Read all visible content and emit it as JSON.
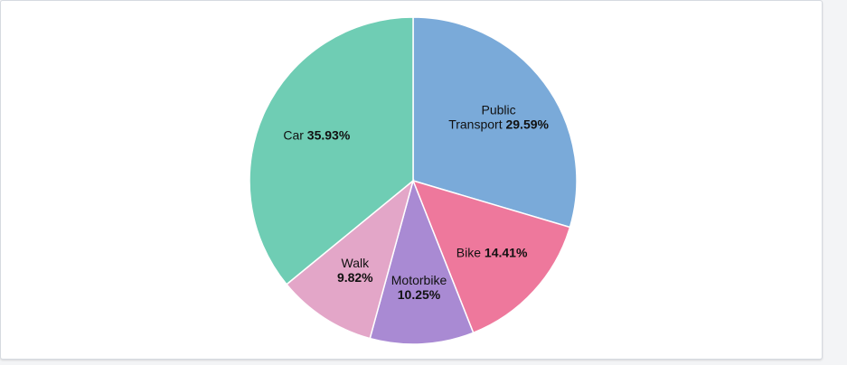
{
  "chart_data": {
    "type": "pie",
    "title": "",
    "slices": [
      {
        "name": "Public Transport",
        "label_lines": [
          "Public",
          "Transport"
        ],
        "value": 29.59,
        "label": "29.59%",
        "color": "#7aaad9"
      },
      {
        "name": "Bike",
        "label_lines": [
          "Bike"
        ],
        "value": 14.41,
        "label": "14.41%",
        "color": "#ee789c"
      },
      {
        "name": "Motorbike",
        "label_lines": [
          "Motorbike"
        ],
        "value": 10.25,
        "label": "10.25%",
        "color": "#a98ad3"
      },
      {
        "name": "Walk",
        "label_lines": [
          "Walk"
        ],
        "value": 9.82,
        "label": "9.82%",
        "color": "#e3a6c8"
      },
      {
        "name": "Car",
        "label_lines": [
          "Car"
        ],
        "value": 35.93,
        "label": "35.93%",
        "color": "#6fcdb4"
      }
    ],
    "start_angle": "12 o'clock",
    "direction": "clockwise"
  }
}
